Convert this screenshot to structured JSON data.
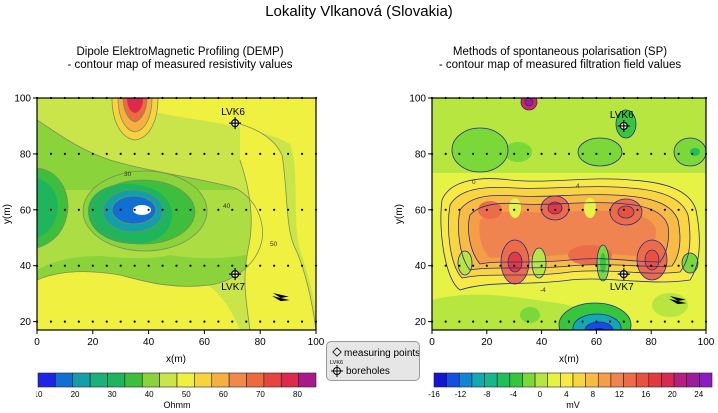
{
  "title": "Lokality Vlkanová (Slovakia)",
  "colors": {
    "frame": "#000000",
    "contour_line_left": "#7d8d5c",
    "contour_line_right": "#2a2a8c",
    "point_marker": "#000000"
  },
  "legend": {
    "measuring_points": "measuring points",
    "boreholes": "boreholes",
    "point_label_sample": "LVK6"
  },
  "chart_data": [
    {
      "type": "heatmap",
      "title_line1": "Dipole ElektroMagnetic Profiling (DEMP)",
      "title_line2": "- contour map of measured resistivity values",
      "xlabel": "x(m)",
      "ylabel": "y(m)",
      "xlim": [
        0,
        100
      ],
      "ylim": [
        17,
        100
      ],
      "x_ticks": [
        0,
        20,
        40,
        60,
        80,
        100
      ],
      "y_ticks": [
        20,
        40,
        60,
        80,
        100
      ],
      "grid": false,
      "colorbar": {
        "unit": "Ohmm",
        "tick_labels": [
          "10",
          "20",
          "30",
          "40",
          "50",
          "60",
          "70",
          "80"
        ],
        "levels": [
          10,
          15,
          20,
          25,
          30,
          35,
          40,
          45,
          50,
          55,
          60,
          65,
          70,
          75,
          80,
          85
        ],
        "colors": [
          "#1e24e6",
          "#0f6fd2",
          "#11a0a8",
          "#1ab17a",
          "#1fb55c",
          "#3dbf3d",
          "#8ad33a",
          "#c9e54a",
          "#f0f040",
          "#f8d43c",
          "#f5b041",
          "#f08a48",
          "#ec6a3c",
          "#e6443e",
          "#dd2a4c",
          "#a81a8c"
        ]
      },
      "contour_labels": [
        "30",
        "40",
        "50"
      ],
      "boreholes": [
        {
          "name": "LVK6",
          "x": 71,
          "y": 91
        },
        {
          "name": "LVK7",
          "x": 71,
          "y": 37
        }
      ]
    },
    {
      "type": "heatmap",
      "title_line1": "Methods of spontaneous polarisation (SP)",
      "title_line2": "- contour map of measured filtration field values",
      "xlabel": "x(m)",
      "ylabel": "y(m)",
      "xlim": [
        0,
        100
      ],
      "ylim": [
        17,
        100
      ],
      "x_ticks": [
        0,
        20,
        40,
        60,
        80,
        100
      ],
      "y_ticks": [
        20,
        40,
        60,
        80,
        100
      ],
      "grid": false,
      "colorbar": {
        "unit": "mV",
        "tick_labels": [
          "-16",
          "-12",
          "-8",
          "-4",
          "0",
          "4",
          "8",
          "12",
          "16",
          "20",
          "24"
        ],
        "levels": [
          -16,
          -14,
          -12,
          -10,
          -8,
          -6,
          -4,
          -2,
          0,
          2,
          4,
          6,
          8,
          10,
          12,
          14,
          16,
          18,
          20,
          22,
          24,
          26
        ],
        "colors": [
          "#1414d2",
          "#1150e0",
          "#0f86d2",
          "#12a8b4",
          "#15b78c",
          "#1fbf5a",
          "#35c63d",
          "#7ad838",
          "#b6e63f",
          "#e6f244",
          "#f7ea44",
          "#f9d640",
          "#f8bc42",
          "#f49f48",
          "#f08450",
          "#ec6c48",
          "#e8523c",
          "#e23a3e",
          "#d62a52",
          "#b61f7e",
          "#9c1c9e",
          "#8a1cc0"
        ]
      },
      "contour_labels": [
        "0",
        "4",
        "-4"
      ],
      "boreholes": [
        {
          "name": "LVK6",
          "x": 70,
          "y": 90
        },
        {
          "name": "LVK7",
          "x": 70,
          "y": 37
        }
      ]
    }
  ]
}
